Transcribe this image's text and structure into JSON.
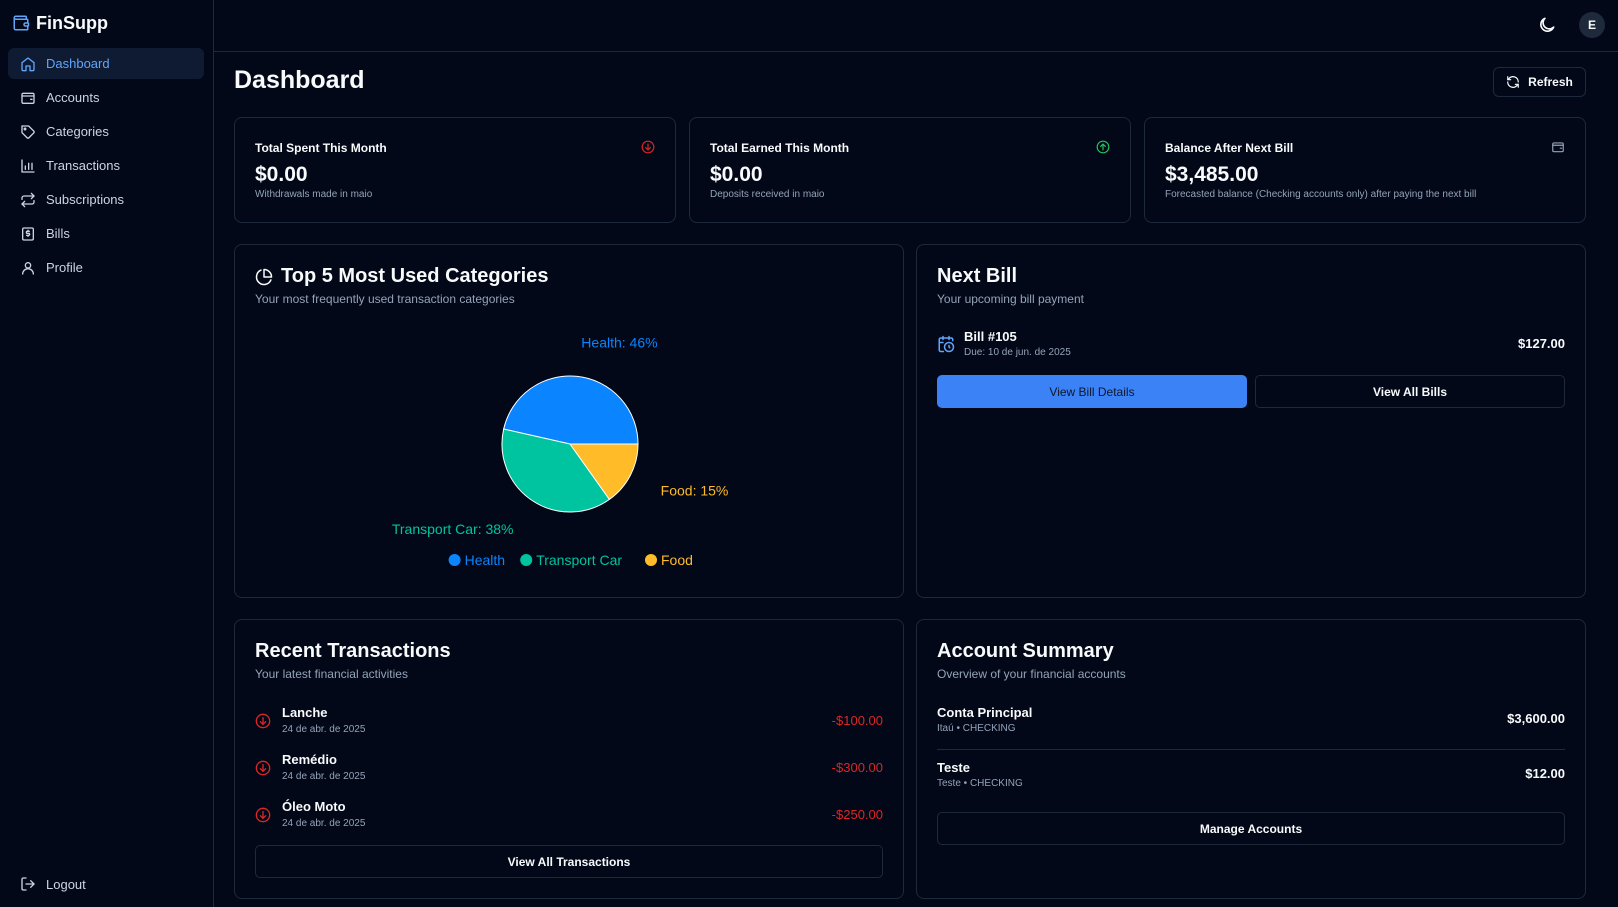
{
  "brand": {
    "name": "FinSupp"
  },
  "sidebar": {
    "items": [
      {
        "label": "Dashboard",
        "icon": "home-icon"
      },
      {
        "label": "Accounts",
        "icon": "wallet-icon"
      },
      {
        "label": "Categories",
        "icon": "tag-icon"
      },
      {
        "label": "Transactions",
        "icon": "bar-chart-icon"
      },
      {
        "label": "Subscriptions",
        "icon": "repeat-icon"
      },
      {
        "label": "Bills",
        "icon": "receipt-icon"
      },
      {
        "label": "Profile",
        "icon": "user-icon"
      }
    ],
    "logout_label": "Logout"
  },
  "header": {
    "avatar_initial": "E"
  },
  "page": {
    "title": "Dashboard",
    "refresh_label": "Refresh"
  },
  "stats": [
    {
      "title": "Total Spent This Month",
      "value": "$0.00",
      "subtitle": "Withdrawals made in maio",
      "icon": "arrow-down-circle-icon"
    },
    {
      "title": "Total Earned This Month",
      "value": "$0.00",
      "subtitle": "Deposits received in maio",
      "icon": "arrow-up-circle-icon"
    },
    {
      "title": "Balance After Next Bill",
      "value": "$3,485.00",
      "subtitle": "Forecasted balance (Checking accounts only) after paying the next bill",
      "icon": "wallet-icon"
    }
  ],
  "categories_card": {
    "title": "Top 5 Most Used Categories",
    "subtitle": "Your most frequently used transaction categories"
  },
  "chart_data": {
    "type": "pie",
    "categories": [
      "Health",
      "Transport Car",
      "Food"
    ],
    "values": [
      46,
      38,
      15
    ],
    "slice_labels": [
      "Health: 46%",
      "Transport Car: 38%",
      "Food: 15%"
    ],
    "colors": [
      "#0a84ff",
      "#00c49f",
      "#ffbb28"
    ],
    "legend": [
      "Health",
      "Transport Car",
      "Food"
    ]
  },
  "next_bill": {
    "title": "Next Bill",
    "subtitle": "Your upcoming bill payment",
    "bill_name": "Bill #105",
    "due": "Due: 10 de jun. de 2025",
    "amount": "$127.00",
    "details_label": "View Bill Details",
    "all_label": "View All Bills"
  },
  "recent": {
    "title": "Recent Transactions",
    "subtitle": "Your latest financial activities",
    "items": [
      {
        "name": "Lanche",
        "date": "24 de abr. de 2025",
        "amount": "-$100.00"
      },
      {
        "name": "Remédio",
        "date": "24 de abr. de 2025",
        "amount": "-$300.00"
      },
      {
        "name": "Óleo Moto",
        "date": "24 de abr. de 2025",
        "amount": "-$250.00"
      }
    ],
    "view_all_label": "View All Transactions"
  },
  "accounts": {
    "title": "Account Summary",
    "subtitle": "Overview of your financial accounts",
    "items": [
      {
        "name": "Conta Principal",
        "meta": "Itaú • CHECKING",
        "balance": "$3,600.00"
      },
      {
        "name": "Teste",
        "meta": "Teste • CHECKING",
        "balance": "$12.00"
      }
    ],
    "manage_label": "Manage Accounts"
  }
}
